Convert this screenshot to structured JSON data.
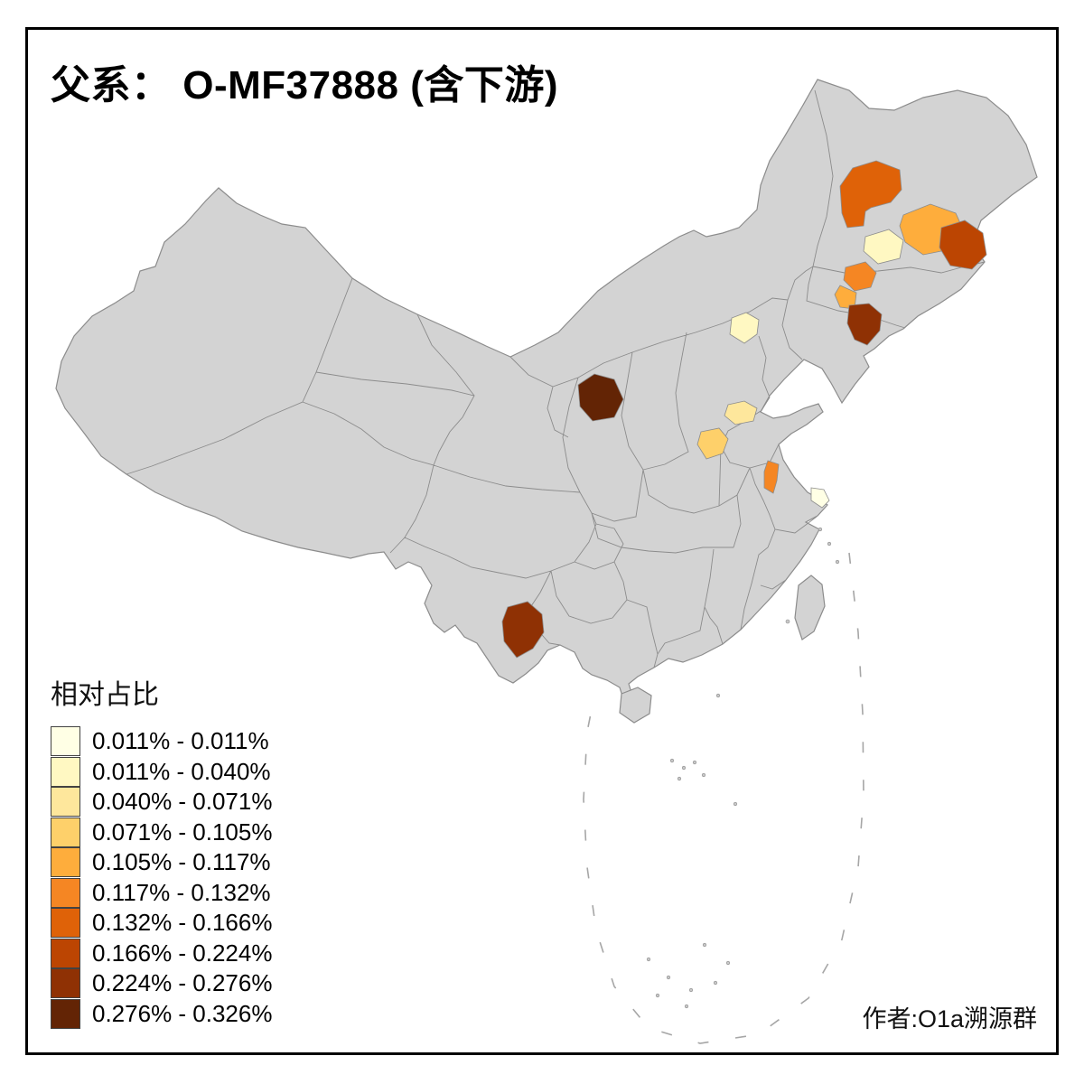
{
  "title": "父系： O-MF37888 (含下游)",
  "attribution": "作者:O1a溯源群",
  "legend": {
    "title": "相对占比",
    "items": [
      {
        "range": "0.011% - 0.011%",
        "color": "#FFFFE5"
      },
      {
        "range": "0.011% - 0.040%",
        "color": "#FFF8C2"
      },
      {
        "range": "0.040% - 0.071%",
        "color": "#FEE79C"
      },
      {
        "range": "0.071% - 0.105%",
        "color": "#FED06A"
      },
      {
        "range": "0.105% - 0.117%",
        "color": "#FEAD3C"
      },
      {
        "range": "0.117% - 0.132%",
        "color": "#F58623"
      },
      {
        "range": "0.132% - 0.166%",
        "color": "#DF6208"
      },
      {
        "range": "0.166% - 0.224%",
        "color": "#BC4502"
      },
      {
        "range": "0.224% - 0.276%",
        "color": "#8F3104"
      },
      {
        "range": "0.276% - 0.326%",
        "color": "#632405"
      }
    ]
  },
  "map": {
    "base_fill": "#D3D3D3",
    "border_color": "#8C8C8C",
    "background": "#FFFFFF",
    "regions": [
      {
        "id": "northeast-inner-mongolia",
        "range": "0.132% - 0.166%",
        "color": "#DF6208"
      },
      {
        "id": "heilongjiang-central",
        "range": "0.105% - 0.117%",
        "color": "#FEAD3C"
      },
      {
        "id": "heilongjiang-southwest",
        "range": "0.011% - 0.040%",
        "color": "#FFF8C2"
      },
      {
        "id": "heilongjiang-east",
        "range": "0.166% - 0.224%",
        "color": "#BC4502"
      },
      {
        "id": "jilin-central",
        "range": "0.117% - 0.132%",
        "color": "#F58623"
      },
      {
        "id": "jilin-southwest",
        "range": "0.105% - 0.117%",
        "color": "#FEAD3C"
      },
      {
        "id": "liaoning-east",
        "range": "0.224% - 0.276%",
        "color": "#8F3104"
      },
      {
        "id": "beijing",
        "range": "0.011% - 0.040%",
        "color": "#FFF8C2"
      },
      {
        "id": "shanxi-west",
        "range": "0.276% - 0.326%",
        "color": "#632405"
      },
      {
        "id": "shandong-west",
        "range": "0.040% - 0.071%",
        "color": "#FEE79C"
      },
      {
        "id": "henan-central",
        "range": "0.071% - 0.105%",
        "color": "#FED06A"
      },
      {
        "id": "anhui-central",
        "range": "0.117% - 0.132%",
        "color": "#F58623"
      },
      {
        "id": "shanghai",
        "range": "0.011% - 0.011%",
        "color": "#FFFFE5"
      },
      {
        "id": "yunnan-southeast",
        "range": "0.224% - 0.276%",
        "color": "#8F3104"
      }
    ]
  }
}
